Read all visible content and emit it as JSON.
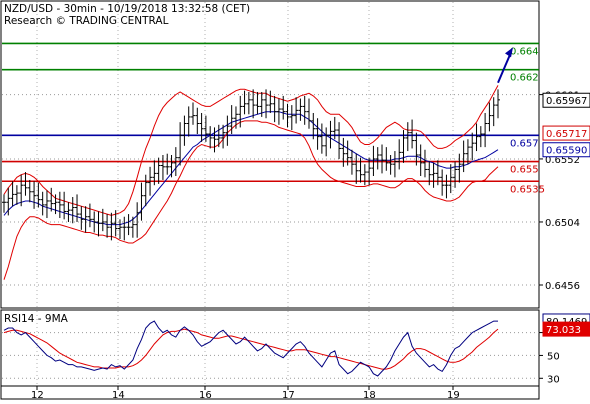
{
  "chart_data": {
    "type": "line",
    "title": "NZD/USD - 30min - 10/19/2018 13:32:58 (CET)",
    "subtitle": "Research © TRADING CENTRAL",
    "x_tick_labels": [
      "12",
      "14",
      "16",
      "17",
      "18",
      "19"
    ],
    "price_panel": {
      "ylim": [
        0.644,
        0.667
      ],
      "y_tick_labels": [
        {
          "value": 0.6601,
          "label": "0.6601"
        },
        {
          "value": 0.6552,
          "label": "0.6552"
        },
        {
          "value": 0.6504,
          "label": "0.6504"
        },
        {
          "value": 0.6456,
          "label": "0.6456"
        }
      ],
      "levels": [
        {
          "value": 0.664,
          "label": "0.664",
          "color": "#008000"
        },
        {
          "value": 0.662,
          "label": "0.662",
          "color": "#008000"
        },
        {
          "value": 0.657,
          "label": "0.657",
          "color": "#0000a0"
        },
        {
          "value": 0.655,
          "label": "0.655",
          "color": "#d00000"
        },
        {
          "value": 0.6535,
          "label": "0.6535",
          "color": "#d00000"
        }
      ],
      "value_tags": [
        {
          "value": 0.65967,
          "label": "0.65967",
          "bg": "#ffffff",
          "fg": "#000000",
          "border": "#000000"
        },
        {
          "value": 0.65717,
          "label": "0.65717",
          "bg": "#ffffff",
          "fg": "#d00000",
          "border": "#d00000"
        },
        {
          "value": 0.6559,
          "label": "0.65590",
          "bg": "#ffffff",
          "fg": "#0000a0",
          "border": "#0000a0"
        }
      ],
      "projection": {
        "from": 0.661,
        "to": 0.6637
      },
      "close": [
        0.6519,
        0.6522,
        0.6525,
        0.6526,
        0.6532,
        0.653,
        0.6527,
        0.6524,
        0.6521,
        0.6517,
        0.652,
        0.6518,
        0.6519,
        0.6517,
        0.6512,
        0.6513,
        0.6515,
        0.651,
        0.6506,
        0.6508,
        0.6506,
        0.6504,
        0.6503,
        0.6504,
        0.65,
        0.6503,
        0.6499,
        0.65,
        0.65,
        0.65,
        0.6502,
        0.6511,
        0.6524,
        0.6534,
        0.6538,
        0.6541,
        0.6547,
        0.6546,
        0.6546,
        0.6549,
        0.6553,
        0.657,
        0.6579,
        0.6584,
        0.6585,
        0.6579,
        0.6575,
        0.6571,
        0.6568,
        0.6567,
        0.6568,
        0.6572,
        0.6577,
        0.6583,
        0.6586,
        0.6592,
        0.6594,
        0.6597,
        0.6593,
        0.6592,
        0.6597,
        0.6593,
        0.6594,
        0.6588,
        0.659,
        0.6588,
        0.6584,
        0.6585,
        0.6589,
        0.6592,
        0.6588,
        0.6581,
        0.6575,
        0.6569,
        0.6562,
        0.657,
        0.6573,
        0.6574,
        0.656,
        0.6556,
        0.6553,
        0.6548,
        0.6543,
        0.654,
        0.6542,
        0.6545,
        0.6552,
        0.6555,
        0.6551,
        0.6549,
        0.6548,
        0.655,
        0.6557,
        0.6568,
        0.6572,
        0.6566,
        0.6555,
        0.6549,
        0.6544,
        0.654,
        0.6541,
        0.6538,
        0.6532,
        0.6532,
        0.6538,
        0.6544,
        0.6548,
        0.6556,
        0.6561,
        0.6564,
        0.6569,
        0.6571,
        0.6579,
        0.6585,
        0.6593,
        0.6597
      ],
      "bollinger_upper": [
        0.6525,
        0.653,
        0.6534,
        0.6538,
        0.654,
        0.6541,
        0.654,
        0.6538,
        0.6535,
        0.6531,
        0.6528,
        0.6525,
        0.6522,
        0.6521,
        0.652,
        0.6519,
        0.6518,
        0.6517,
        0.6516,
        0.6515,
        0.6514,
        0.6513,
        0.6512,
        0.6511,
        0.651,
        0.6509,
        0.651,
        0.6511,
        0.6513,
        0.6518,
        0.6527,
        0.6538,
        0.655,
        0.656,
        0.6568,
        0.6577,
        0.6585,
        0.6591,
        0.6595,
        0.6598,
        0.6601,
        0.6603,
        0.6601,
        0.6599,
        0.6597,
        0.6595,
        0.6593,
        0.6592,
        0.6592,
        0.6594,
        0.6596,
        0.6598,
        0.66,
        0.6602,
        0.6604,
        0.6605,
        0.6605,
        0.6604,
        0.6603,
        0.6602,
        0.6602,
        0.6602,
        0.66,
        0.6599,
        0.6598,
        0.6597,
        0.6596,
        0.6597,
        0.6598,
        0.66,
        0.6601,
        0.6602,
        0.66,
        0.6597,
        0.6592,
        0.6588,
        0.6586,
        0.6586,
        0.6586,
        0.6583,
        0.658,
        0.6576,
        0.657,
        0.6565,
        0.6563,
        0.6563,
        0.6565,
        0.6568,
        0.6572,
        0.6576,
        0.6578,
        0.658,
        0.6578,
        0.6575,
        0.6574,
        0.6574,
        0.6574,
        0.6573,
        0.657,
        0.6566,
        0.6562,
        0.656,
        0.656,
        0.6561,
        0.6563,
        0.6566,
        0.6568,
        0.657,
        0.6573,
        0.6576,
        0.658,
        0.6586,
        0.6591,
        0.6596,
        0.6602,
        0.6608
      ],
      "bollinger_lower": [
        0.646,
        0.647,
        0.6482,
        0.6493,
        0.65,
        0.6505,
        0.6508,
        0.6508,
        0.6507,
        0.6505,
        0.6503,
        0.6502,
        0.6502,
        0.6502,
        0.6501,
        0.65,
        0.6499,
        0.6498,
        0.6497,
        0.6496,
        0.6496,
        0.6495,
        0.6494,
        0.6494,
        0.6493,
        0.6493,
        0.6492,
        0.649,
        0.6489,
        0.6488,
        0.6488,
        0.649,
        0.6492,
        0.6495,
        0.65,
        0.6505,
        0.651,
        0.6515,
        0.652,
        0.6526,
        0.6533,
        0.6539,
        0.6546,
        0.6552,
        0.6557,
        0.6561,
        0.6563,
        0.6562,
        0.6561,
        0.6561,
        0.6563,
        0.6567,
        0.6572,
        0.6575,
        0.6578,
        0.658,
        0.6581,
        0.6581,
        0.6581,
        0.6581,
        0.658,
        0.658,
        0.6579,
        0.6578,
        0.6576,
        0.6575,
        0.6574,
        0.6573,
        0.6572,
        0.6571,
        0.6568,
        0.6562,
        0.6554,
        0.6548,
        0.6544,
        0.6541,
        0.6538,
        0.6536,
        0.6535,
        0.6534,
        0.6533,
        0.6532,
        0.6531,
        0.6531,
        0.6531,
        0.6532,
        0.6533,
        0.6533,
        0.6532,
        0.6531,
        0.653,
        0.653,
        0.6532,
        0.6535,
        0.6537,
        0.6537,
        0.6535,
        0.6532,
        0.6528,
        0.6525,
        0.6523,
        0.6522,
        0.6521,
        0.652,
        0.652,
        0.6521,
        0.6523,
        0.6527,
        0.6531,
        0.6534,
        0.6535,
        0.6535,
        0.6536,
        0.654,
        0.6543,
        0.6546
      ],
      "ma_blue": [
        0.6509,
        0.6513,
        0.6516,
        0.6518,
        0.6519,
        0.652,
        0.652,
        0.6519,
        0.6518,
        0.6516,
        0.6515,
        0.6514,
        0.6513,
        0.6512,
        0.6511,
        0.651,
        0.6509,
        0.6508,
        0.6507,
        0.6506,
        0.6505,
        0.6504,
        0.6503,
        0.6503,
        0.6502,
        0.6502,
        0.6502,
        0.6502,
        0.6503,
        0.6504,
        0.6506,
        0.6509,
        0.6513,
        0.6517,
        0.6521,
        0.6525,
        0.6529,
        0.6533,
        0.6537,
        0.6541,
        0.6545,
        0.6549,
        0.6553,
        0.6557,
        0.6561,
        0.6563,
        0.6566,
        0.6568,
        0.657,
        0.6572,
        0.6574,
        0.6576,
        0.6578,
        0.658,
        0.6581,
        0.6582,
        0.6583,
        0.6584,
        0.6585,
        0.6586,
        0.6587,
        0.6588,
        0.6588,
        0.6588,
        0.6588,
        0.6587,
        0.6586,
        0.6586,
        0.6586,
        0.6586,
        0.6584,
        0.6582,
        0.6579,
        0.6576,
        0.6573,
        0.657,
        0.6568,
        0.6566,
        0.6564,
        0.6562,
        0.656,
        0.6558,
        0.6556,
        0.6554,
        0.6552,
        0.6551,
        0.6551,
        0.6551,
        0.6551,
        0.6551,
        0.6551,
        0.6552,
        0.6552,
        0.6553,
        0.6554,
        0.6554,
        0.6554,
        0.6553,
        0.6551,
        0.655,
        0.6549,
        0.6547,
        0.6546,
        0.6545,
        0.6545,
        0.6546,
        0.6546,
        0.6547,
        0.6548,
        0.655,
        0.6551,
        0.6552,
        0.6553,
        0.6555,
        0.6557,
        0.6559
      ]
    },
    "rsi_panel": {
      "label": "RSI14 - 9MA",
      "ylim": [
        25,
        88
      ],
      "y_tick_labels": [
        {
          "value": 70,
          "label": "70"
        },
        {
          "value": 50,
          "label": "50"
        },
        {
          "value": 30,
          "label": "30"
        }
      ],
      "value_tags": [
        {
          "value": 80.1469,
          "label": "80.1469",
          "bg": "#ffffff",
          "fg": "#000000",
          "border": "#000080"
        },
        {
          "value": 73.033,
          "label": "73.033",
          "bg": "#e00000",
          "fg": "#ffffff",
          "border": "#e00000"
        }
      ],
      "rsi": [
        72,
        74,
        74,
        70,
        68,
        70,
        66,
        62,
        58,
        54,
        50,
        48,
        45,
        46,
        44,
        42,
        42,
        40,
        40,
        39,
        38,
        37,
        38,
        39,
        38,
        42,
        40,
        41,
        38,
        42,
        46,
        56,
        64,
        74,
        78,
        80,
        74,
        70,
        72,
        68,
        66,
        72,
        75,
        72,
        68,
        62,
        58,
        60,
        62,
        66,
        70,
        72,
        68,
        64,
        60,
        62,
        66,
        62,
        58,
        54,
        56,
        60,
        56,
        52,
        50,
        48,
        52,
        56,
        60,
        62,
        58,
        52,
        48,
        44,
        40,
        46,
        52,
        54,
        42,
        38,
        34,
        36,
        40,
        44,
        42,
        40,
        34,
        32,
        36,
        40,
        46,
        54,
        60,
        66,
        70,
        58,
        52,
        48,
        44,
        40,
        42,
        38,
        36,
        42,
        50,
        56,
        58,
        62,
        66,
        70,
        72,
        74,
        76,
        78,
        80,
        80
      ],
      "ma9": [
        70,
        71,
        72,
        72,
        71,
        70,
        69,
        67,
        65,
        63,
        61,
        58,
        55,
        52,
        50,
        48,
        46,
        44,
        43,
        42,
        41,
        40,
        40,
        39,
        39,
        39,
        39,
        40,
        40,
        40,
        41,
        43,
        46,
        50,
        55,
        60,
        64,
        68,
        70,
        71,
        71,
        72,
        73,
        72,
        71,
        70,
        68,
        67,
        66,
        65,
        65,
        66,
        67,
        67,
        66,
        65,
        64,
        63,
        62,
        61,
        60,
        59,
        58,
        57,
        56,
        55,
        54,
        54,
        55,
        55,
        55,
        54,
        53,
        52,
        51,
        50,
        49,
        49,
        48,
        47,
        46,
        45,
        44,
        43,
        42,
        41,
        40,
        39,
        38,
        38,
        39,
        41,
        44,
        47,
        51,
        54,
        56,
        56,
        55,
        53,
        51,
        49,
        47,
        45,
        44,
        44,
        45,
        47,
        50,
        53,
        57,
        60,
        63,
        66,
        70,
        73
      ]
    }
  }
}
